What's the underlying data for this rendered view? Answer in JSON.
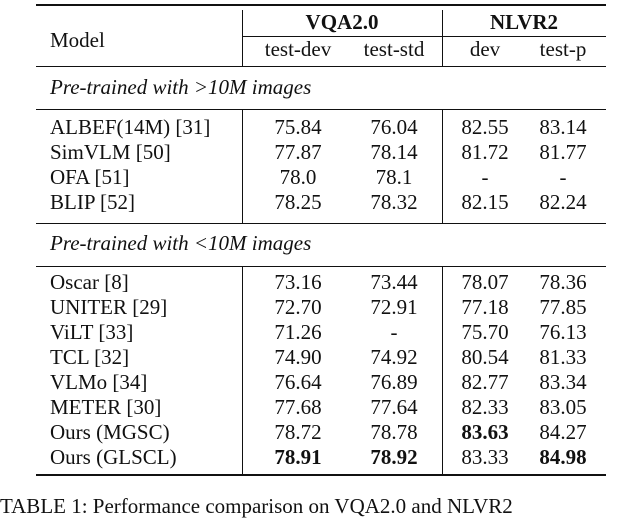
{
  "table": {
    "headers": {
      "model": "Model",
      "vqa_group": "VQA2.0",
      "nlvr_group": "NLVR2",
      "vqa_test_dev": "test-dev",
      "vqa_test_std": "test-std",
      "nlvr_dev": "dev",
      "nlvr_test_p": "test-p"
    },
    "sections": [
      {
        "title": "Pre-trained with >10M images",
        "rows": [
          {
            "model": "ALBEF(14M) [31]",
            "vqa_test_dev": "75.84",
            "vqa_test_std": "76.04",
            "nlvr_dev": "82.55",
            "nlvr_test_p": "83.14"
          },
          {
            "model": "SimVLM [50]",
            "vqa_test_dev": "77.87",
            "vqa_test_std": "78.14",
            "nlvr_dev": "81.72",
            "nlvr_test_p": "81.77"
          },
          {
            "model": "OFA [51]",
            "vqa_test_dev": "78.0",
            "vqa_test_std": "78.1",
            "nlvr_dev": "-",
            "nlvr_test_p": "-"
          },
          {
            "model": "BLIP [52]",
            "vqa_test_dev": "78.25",
            "vqa_test_std": "78.32",
            "nlvr_dev": "82.15",
            "nlvr_test_p": "82.24"
          }
        ]
      },
      {
        "title": "Pre-trained with <10M images",
        "rows": [
          {
            "model": "Oscar [8]",
            "vqa_test_dev": "73.16",
            "vqa_test_std": "73.44",
            "nlvr_dev": "78.07",
            "nlvr_test_p": "78.36"
          },
          {
            "model": "UNITER [29]",
            "vqa_test_dev": "72.70",
            "vqa_test_std": "72.91",
            "nlvr_dev": "77.18",
            "nlvr_test_p": "77.85"
          },
          {
            "model": "ViLT [33]",
            "vqa_test_dev": "71.26",
            "vqa_test_std": "-",
            "nlvr_dev": "75.70",
            "nlvr_test_p": "76.13"
          },
          {
            "model": "TCL [32]",
            "vqa_test_dev": "74.90",
            "vqa_test_std": "74.92",
            "nlvr_dev": "80.54",
            "nlvr_test_p": "81.33"
          },
          {
            "model": "VLMo [34]",
            "vqa_test_dev": "76.64",
            "vqa_test_std": "76.89",
            "nlvr_dev": "82.77",
            "nlvr_test_p": "83.34"
          },
          {
            "model": "METER [30]",
            "vqa_test_dev": "77.68",
            "vqa_test_std": "77.64",
            "nlvr_dev": "82.33",
            "nlvr_test_p": "83.05"
          },
          {
            "model": "Ours (MGSC)",
            "vqa_test_dev": "78.72",
            "vqa_test_std": "78.78",
            "nlvr_dev": "83.63",
            "nlvr_test_p": "84.27",
            "bold": [
              "nlvr_dev"
            ]
          },
          {
            "model": "Ours (GLSCL)",
            "vqa_test_dev": "78.91",
            "vqa_test_std": "78.92",
            "nlvr_dev": "83.33",
            "nlvr_test_p": "84.98",
            "bold": [
              "vqa_test_dev",
              "vqa_test_std",
              "nlvr_test_p"
            ]
          }
        ]
      }
    ]
  },
  "caption": "TABLE 1: Performance comparison on VQA2.0 and NLVR2"
}
